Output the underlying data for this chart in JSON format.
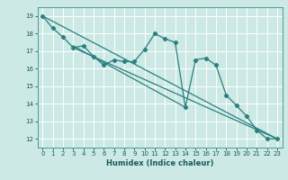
{
  "title": "",
  "xlabel": "Humidex (Indice chaleur)",
  "bg_color": "#cce9e5",
  "line_color": "#2a7f7f",
  "grid_color": "#ffffff",
  "grid_minor_color": "#e0f0ee",
  "xlim": [
    -0.5,
    23.5
  ],
  "ylim": [
    11.5,
    19.5
  ],
  "xticks": [
    0,
    1,
    2,
    3,
    4,
    5,
    6,
    7,
    8,
    9,
    10,
    11,
    12,
    13,
    14,
    15,
    16,
    17,
    18,
    19,
    20,
    21,
    22,
    23
  ],
  "yticks": [
    12,
    13,
    14,
    15,
    16,
    17,
    18,
    19
  ],
  "series": [
    [
      0,
      19.0
    ],
    [
      1,
      18.3
    ],
    [
      2,
      17.8
    ],
    [
      3,
      17.2
    ],
    [
      4,
      17.3
    ],
    [
      5,
      16.7
    ],
    [
      6,
      16.2
    ],
    [
      7,
      16.5
    ],
    [
      8,
      16.4
    ],
    [
      9,
      16.4
    ],
    [
      10,
      17.1
    ],
    [
      11,
      18.0
    ],
    [
      12,
      17.7
    ],
    [
      13,
      17.5
    ],
    [
      14,
      13.8
    ],
    [
      15,
      16.5
    ],
    [
      16,
      16.6
    ],
    [
      17,
      16.2
    ],
    [
      18,
      14.5
    ],
    [
      19,
      13.9
    ],
    [
      20,
      13.3
    ],
    [
      21,
      12.5
    ],
    [
      22,
      12.0
    ],
    [
      23,
      12.0
    ]
  ],
  "line2": [
    [
      0,
      19.0
    ],
    [
      23,
      12.0
    ]
  ],
  "line3": [
    [
      3,
      17.2
    ],
    [
      23,
      12.0
    ]
  ],
  "line4": [
    [
      3,
      17.3
    ],
    [
      14,
      13.8
    ]
  ]
}
